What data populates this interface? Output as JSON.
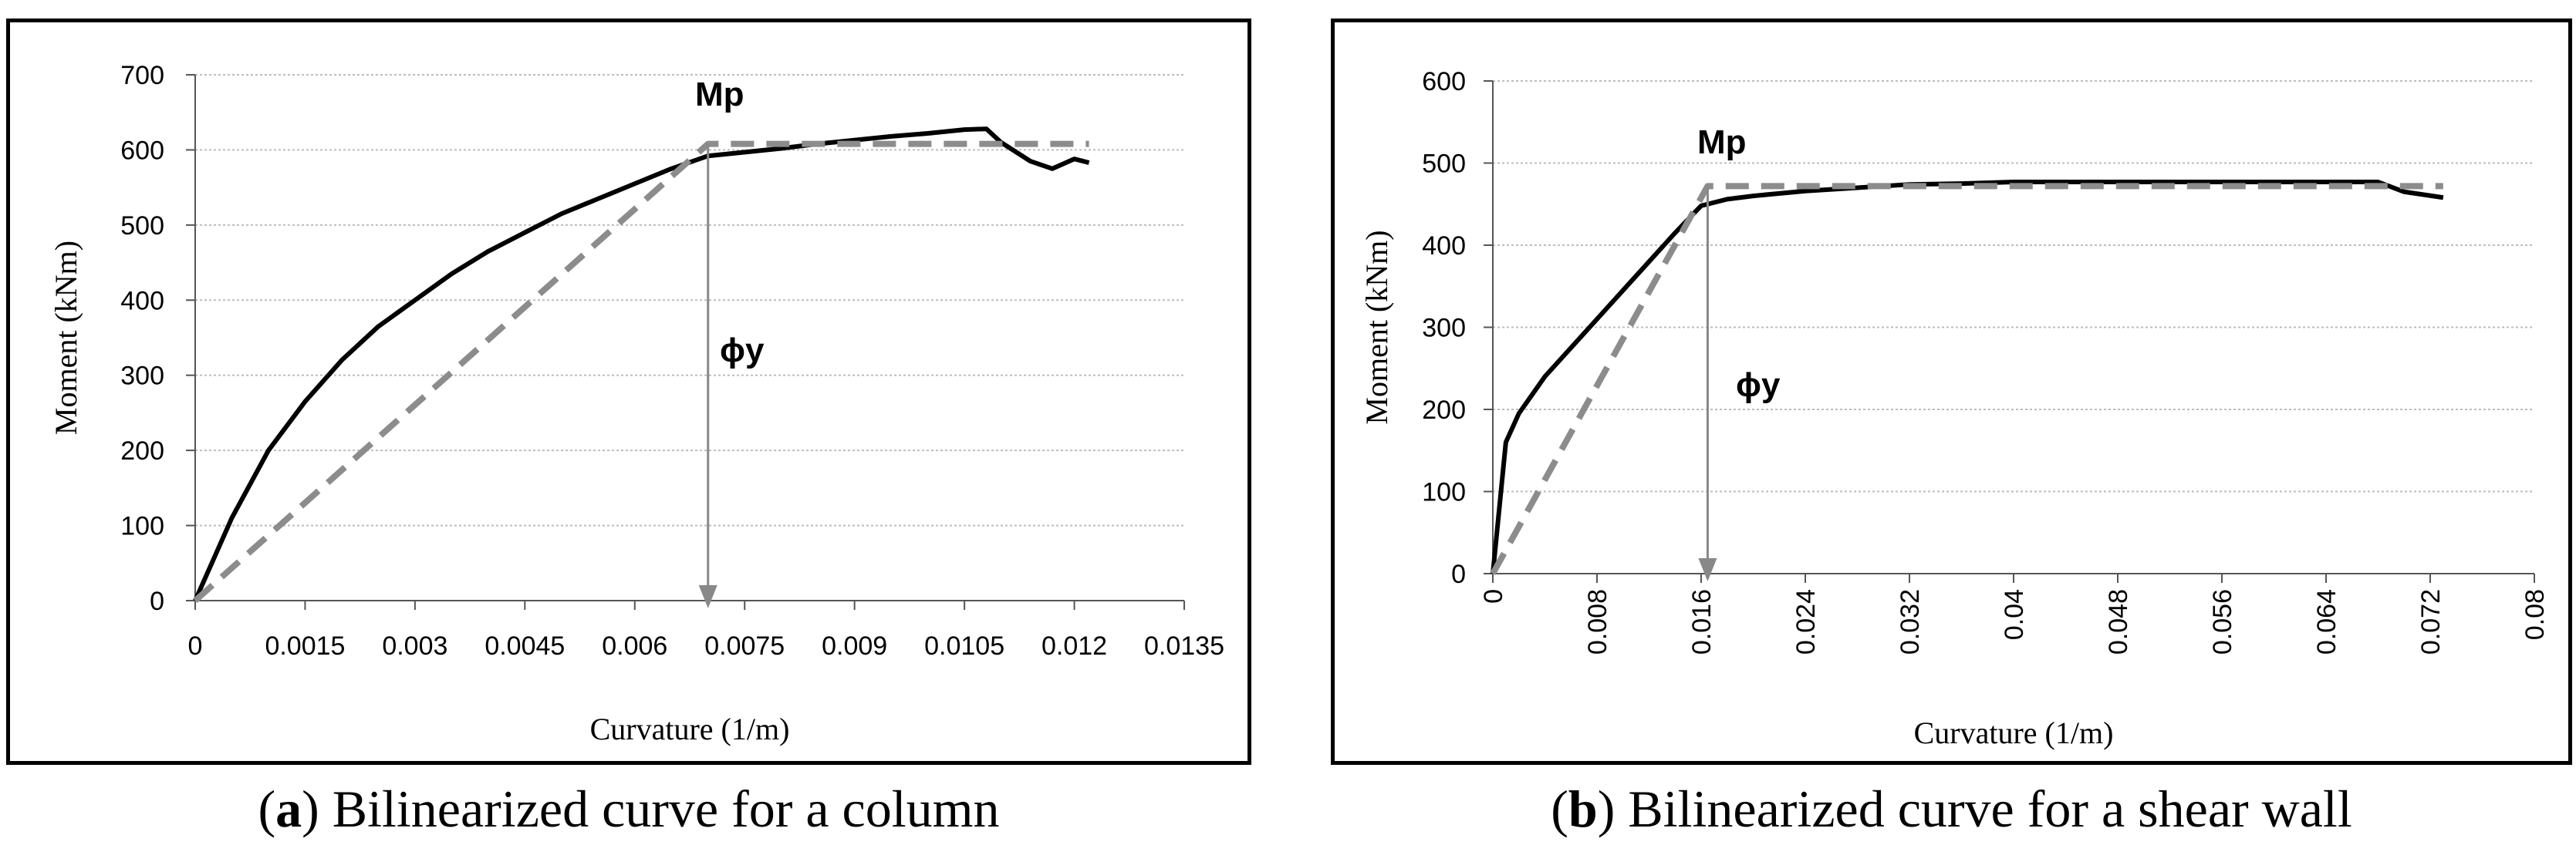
{
  "chart_data": [
    {
      "type": "line",
      "caption_label": "a",
      "caption_text": ") Bilinearized curve for a column",
      "xlabel": "Curvature (1/m)",
      "ylabel": "Moment (kNm)",
      "xlim": [
        0,
        0.0135
      ],
      "ylim": [
        0,
        700
      ],
      "xticks": [
        "0",
        "0.0015",
        "0.003",
        "0.0045",
        "0.006",
        "0.0075",
        "0.009",
        "0.0105",
        "0.012",
        "0.0135"
      ],
      "yticks": [
        "0",
        "100",
        "200",
        "300",
        "400",
        "500",
        "600",
        "700"
      ],
      "grid": true,
      "annotations": [
        "Mp",
        "ϕy"
      ],
      "yield_point": {
        "x": 0.007,
        "y": 608
      },
      "series": [
        {
          "style": "solid",
          "color": "#000000",
          "x": [
            0,
            0.0005,
            0.001,
            0.0015,
            0.002,
            0.0025,
            0.003,
            0.0035,
            0.004,
            0.0045,
            0.005,
            0.0055,
            0.006,
            0.0065,
            0.007,
            0.0075,
            0.008,
            0.0085,
            0.009,
            0.0095,
            0.01,
            0.0105,
            0.0108,
            0.011,
            0.0114,
            0.0117,
            0.012,
            0.0122
          ],
          "y": [
            0,
            110,
            200,
            265,
            320,
            365,
            400,
            435,
            465,
            490,
            515,
            535,
            555,
            575,
            592,
            597,
            602,
            608,
            613,
            618,
            622,
            627,
            628,
            610,
            585,
            575,
            588,
            583
          ]
        },
        {
          "style": "dashed",
          "color": "#8c8c8c",
          "x": [
            0,
            0.007,
            0.0122
          ],
          "y": [
            0,
            608,
            608
          ]
        }
      ]
    },
    {
      "type": "line",
      "caption_label": "b",
      "caption_text": ") Bilinearized curve for a shear wall",
      "xlabel": "Curvature (1/m)",
      "ylabel": "Moment (kNm)",
      "xlim": [
        0,
        0.08
      ],
      "ylim": [
        0,
        600
      ],
      "xticks": [
        "0",
        "0.008",
        "0.016",
        "0.024",
        "0.032",
        "0.04",
        "0.048",
        "0.056",
        "0.064",
        "0.072",
        "0.08"
      ],
      "yticks": [
        "0",
        "100",
        "200",
        "300",
        "400",
        "500",
        "600"
      ],
      "grid": true,
      "annotations": [
        "Mp",
        "ϕy"
      ],
      "yield_point": {
        "x": 0.0165,
        "y": 472
      },
      "series": [
        {
          "style": "solid",
          "color": "#000000",
          "x": [
            0,
            0.001,
            0.002,
            0.004,
            0.006,
            0.008,
            0.01,
            0.012,
            0.014,
            0.016,
            0.018,
            0.02,
            0.024,
            0.028,
            0.032,
            0.036,
            0.04,
            0.048,
            0.056,
            0.064,
            0.068,
            0.07,
            0.073
          ],
          "y": [
            0,
            160,
            195,
            240,
            275,
            310,
            345,
            380,
            415,
            448,
            456,
            460,
            466,
            470,
            474,
            475,
            477,
            477,
            477,
            477,
            477,
            465,
            458
          ]
        },
        {
          "style": "dashed",
          "color": "#8c8c8c",
          "x": [
            0,
            0.0165,
            0.073
          ],
          "y": [
            0,
            472,
            472
          ]
        }
      ]
    }
  ]
}
